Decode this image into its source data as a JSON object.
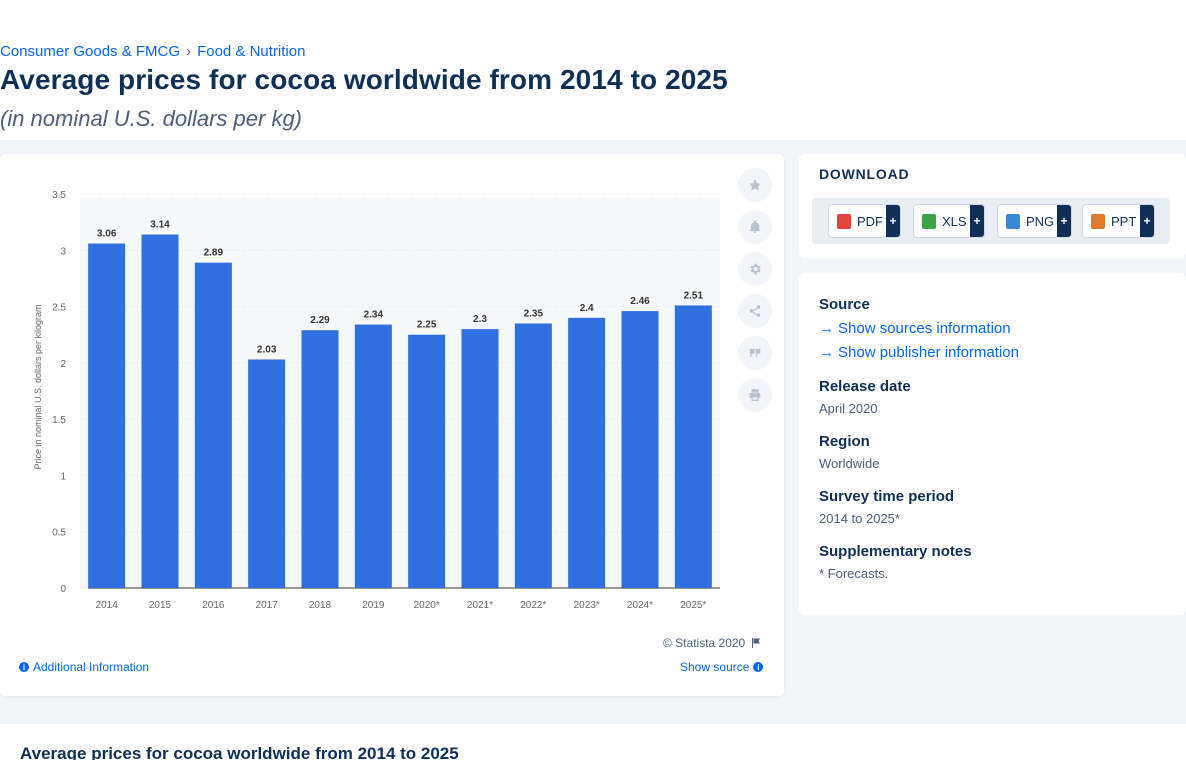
{
  "breadcrumb": {
    "items": [
      "Consumer Goods & FMCG",
      "Food & Nutrition"
    ],
    "separator": "›"
  },
  "page": {
    "title": "Average prices for cocoa worldwide from 2014 to 2025",
    "subtitle": "(in nominal U.S. dollars per kg)"
  },
  "chart_data": {
    "type": "bar",
    "categories": [
      "2014",
      "2015",
      "2016",
      "2017",
      "2018",
      "2019",
      "2020*",
      "2021*",
      "2022*",
      "2023*",
      "2024*",
      "2025*"
    ],
    "values": [
      3.06,
      3.14,
      2.89,
      2.03,
      2.29,
      2.34,
      2.25,
      2.3,
      2.35,
      2.4,
      2.46,
      2.51
    ],
    "value_labels": [
      "3.06",
      "3.14",
      "2.89",
      "2.03",
      "2.29",
      "2.34",
      "2.25",
      "2.3",
      "2.35",
      "2.4",
      "2.46",
      "2.51"
    ],
    "ylabel": "Price in nominal U.S. dollars per kilogram",
    "ylim": [
      0,
      3.5
    ],
    "yticks": [
      "0",
      "0.5",
      "1",
      "1.5",
      "2",
      "2.5",
      "3",
      "3.5"
    ],
    "grid": true,
    "bar_color": "#2f6fe0"
  },
  "chart_footer": {
    "copyright": "© Statista 2020",
    "additional_info": "Additional Information",
    "show_source": "Show source"
  },
  "download": {
    "title": "DOWNLOAD",
    "formats": [
      {
        "label": "PDF",
        "color": "#e0443b"
      },
      {
        "label": "XLS",
        "color": "#3aa34a"
      },
      {
        "label": "PNG",
        "color": "#3a86d6"
      },
      {
        "label": "PPT",
        "color": "#e07b2b"
      }
    ],
    "plus": "+"
  },
  "info": {
    "source_head": "Source",
    "show_sources": "Show sources information",
    "show_publisher": "Show publisher information",
    "release_head": "Release date",
    "release_val": "April 2020",
    "region_head": "Region",
    "region_val": "Worldwide",
    "survey_head": "Survey time period",
    "survey_val": "2014 to 2025*",
    "notes_head": "Supplementary notes",
    "notes_val": "* Forecasts."
  },
  "bottom": {
    "title": "Average prices for cocoa worldwide from 2014 to 2025"
  }
}
